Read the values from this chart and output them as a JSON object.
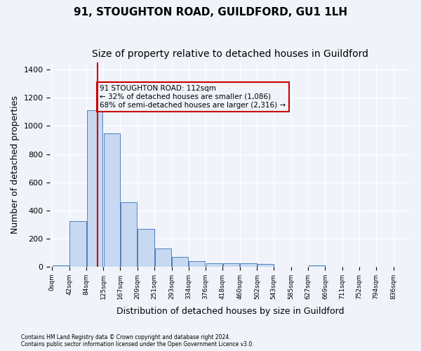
{
  "title": "91, STOUGHTON ROAD, GUILDFORD, GU1 1LH",
  "subtitle": "Size of property relative to detached houses in Guildford",
  "xlabel": "Distribution of detached houses by size in Guildford",
  "ylabel": "Number of detached properties",
  "bar_values": [
    10,
    325,
    1110,
    945,
    460,
    270,
    130,
    68,
    40,
    22,
    25,
    25,
    18,
    0,
    0,
    10,
    0,
    0,
    0
  ],
  "bin_labels": [
    "0sqm",
    "42sqm",
    "84sqm",
    "125sqm",
    "167sqm",
    "209sqm",
    "251sqm",
    "293sqm",
    "334sqm",
    "376sqm",
    "418sqm",
    "460sqm",
    "502sqm",
    "543sqm",
    "585sqm",
    "627sqm",
    "669sqm",
    "711sqm",
    "752sqm",
    "794sqm",
    "836sqm"
  ],
  "bin_edges": [
    0,
    42,
    84,
    125,
    167,
    209,
    251,
    293,
    334,
    376,
    418,
    460,
    502,
    543,
    585,
    627,
    669,
    711,
    752,
    794,
    836
  ],
  "bar_color": "#c8d8f0",
  "bar_edge_color": "#4a7fc1",
  "vline_x": 112,
  "vline_color": "#cc0000",
  "ylim": [
    0,
    1450
  ],
  "annotation_text": "91 STOUGHTON ROAD: 112sqm\n← 32% of detached houses are smaller (1,086)\n68% of semi-detached houses are larger (2,316) →",
  "annotation_box_color": "#cc0000",
  "background_color": "#f0f4fa",
  "grid_color": "#ffffff",
  "footer_line1": "Contains HM Land Registry data © Crown copyright and database right 2024.",
  "footer_line2": "Contains public sector information licensed under the Open Government Licence v3.0.",
  "title_fontsize": 11,
  "subtitle_fontsize": 10,
  "ylabel_fontsize": 9,
  "xlabel_fontsize": 9
}
